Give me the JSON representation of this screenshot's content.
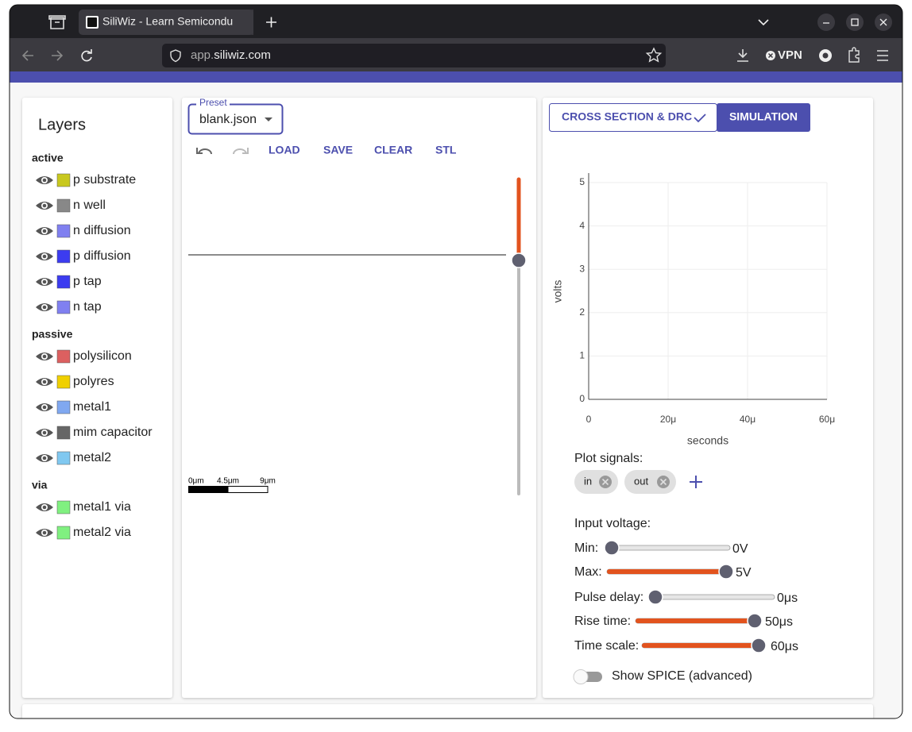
{
  "browser": {
    "tab_title": "SiliWiz - Learn Semicondu",
    "url_prefix": "app.",
    "url_domain": "siliwiz.com",
    "vpn": "VPN"
  },
  "layers": {
    "title": "Layers",
    "groups": [
      {
        "name": "active",
        "items": [
          {
            "name": "p substrate",
            "color": "#c8c81e"
          },
          {
            "name": "n well",
            "color": "#888888"
          },
          {
            "name": "n diffusion",
            "color": "#8080f0"
          },
          {
            "name": "p diffusion",
            "color": "#3c3cf0"
          },
          {
            "name": "p tap",
            "color": "#3c3cf0"
          },
          {
            "name": "n tap",
            "color": "#8080f0"
          }
        ]
      },
      {
        "name": "passive",
        "items": [
          {
            "name": "polysilicon",
            "color": "#dc6060"
          },
          {
            "name": "polyres",
            "color": "#f0d000"
          },
          {
            "name": "metal1",
            "color": "#80a8f0"
          },
          {
            "name": "mim capacitor",
            "color": "#666666"
          },
          {
            "name": "metal2",
            "color": "#80c8f0"
          }
        ]
      },
      {
        "name": "via",
        "items": [
          {
            "name": "metal1 via",
            "color": "#80f080"
          },
          {
            "name": "metal2 via",
            "color": "#80f080"
          }
        ]
      }
    ]
  },
  "editor": {
    "preset_label": "Preset",
    "preset_value": "blank.json",
    "actions": [
      "LOAD",
      "SAVE",
      "CLEAR",
      "STL"
    ],
    "scale_labels": [
      "0μm",
      "4.5μm",
      "9μm"
    ]
  },
  "tabs": [
    "CROSS SECTION & DRC",
    "SIMULATION"
  ],
  "plot": {
    "ylabel": "volts",
    "xlabel": "seconds",
    "ylim": [
      0,
      5.22
    ],
    "yticks": [
      0,
      1,
      2,
      3,
      4,
      5
    ],
    "xlim": [
      0,
      60
    ],
    "xticks": [
      0,
      {
        "value": 20,
        "label": "20μ"
      },
      {
        "value": 40,
        "label": "40μ"
      },
      {
        "value": 60,
        "label": "60μ"
      }
    ]
  },
  "plot_signals": {
    "label": "Plot signals:",
    "chips": [
      "in",
      "out"
    ]
  },
  "input_voltage": {
    "label": "Input voltage:",
    "sliders": [
      {
        "label": "Min:",
        "value": 0,
        "value_label": "0V",
        "range": [
          0,
          5
        ]
      },
      {
        "label": "Max:",
        "value": 5,
        "value_label": "5V",
        "range": [
          0,
          5
        ]
      },
      {
        "label": "Pulse delay:",
        "value": 0,
        "value_label": "0μs",
        "range": [
          0,
          50
        ]
      },
      {
        "label": "Rise time:",
        "value": 50,
        "value_label": "50μs",
        "range": [
          0,
          50
        ]
      },
      {
        "label": "Time scale:",
        "value": 60,
        "value_label": "60μs",
        "range": [
          0,
          60
        ]
      }
    ]
  },
  "spice_toggle": "Show SPICE (advanced)"
}
